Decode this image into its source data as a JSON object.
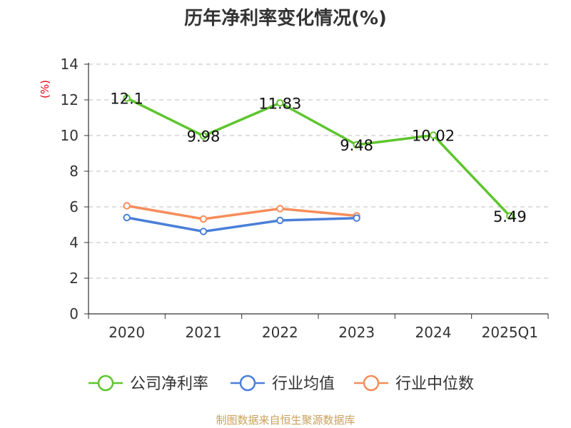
{
  "chart_data": {
    "type": "line",
    "title": "历年净利率变化情况(%)",
    "ylabel": "(%)",
    "xlabel": "",
    "categories": [
      "2020",
      "2021",
      "2022",
      "2023",
      "2024",
      "2025Q1"
    ],
    "ylim": [
      0,
      14
    ],
    "yticks": [
      0,
      2,
      4,
      6,
      8,
      10,
      12,
      14
    ],
    "grid": true,
    "legend_position": "bottom",
    "series": [
      {
        "name": "公司净利率",
        "color": "#5ec52f",
        "values": [
          12.1,
          9.98,
          11.83,
          9.48,
          10.02,
          5.49
        ],
        "labels": [
          "12.1",
          "9.98",
          "11.83",
          "9.48",
          "10.02",
          "5.49"
        ]
      },
      {
        "name": "行业均值",
        "color": "#4a7fd8",
        "values": [
          5.4,
          4.62,
          5.24,
          5.37,
          null,
          null
        ]
      },
      {
        "name": "行业中位数",
        "color": "#f68d5b",
        "values": [
          6.06,
          5.32,
          5.9,
          5.5,
          null,
          null
        ]
      }
    ],
    "source": "制图数据来自恒生聚源数据库"
  }
}
